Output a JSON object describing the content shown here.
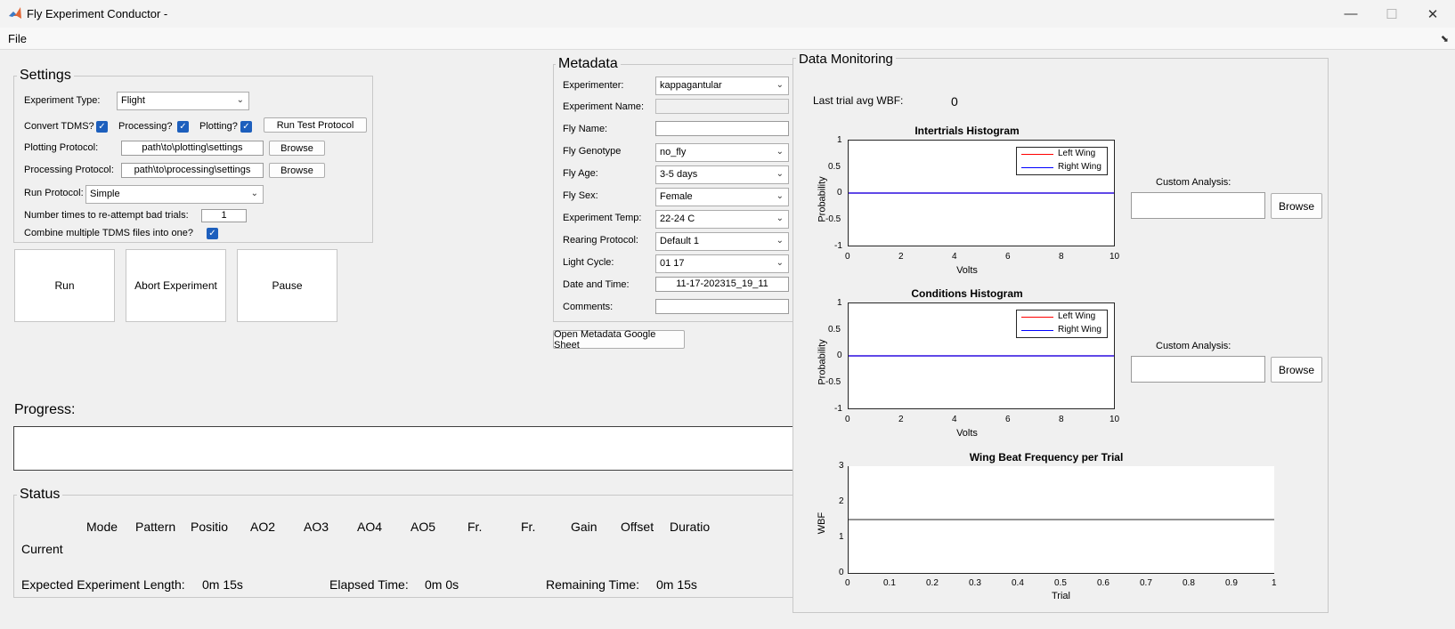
{
  "window": {
    "title": "Fly Experiment Conductor -",
    "minimize": "—",
    "maximize": "☐",
    "close": "✕"
  },
  "menu": {
    "file": "File"
  },
  "settings": {
    "title": "Settings",
    "experiment_type_label": "Experiment Type:",
    "experiment_type_value": "Flight",
    "convert_tdms_label": "Convert TDMS?",
    "processing_label": "Processing?",
    "plotting_label": "Plotting?",
    "run_test_protocol_label": "Run Test Protocol",
    "plotting_protocol_label": "Plotting Protocol:",
    "plotting_protocol_value": "path\\to\\plotting\\settings",
    "processing_protocol_label": "Processing Protocol:",
    "processing_protocol_value": "path\\to\\processing\\settings",
    "browse_label": "Browse",
    "run_protocol_label": "Run Protocol:",
    "run_protocol_value": "Simple",
    "reattempt_label": "Number times to re-attempt bad trials:",
    "reattempt_value": "1",
    "combine_label": "Combine multiple TDMS files into one?",
    "checkmark": "✓"
  },
  "actions": {
    "run": "Run",
    "abort": "Abort Experiment",
    "pause": "Pause"
  },
  "progress": {
    "label": "Progress:",
    "fraction": 0
  },
  "status": {
    "title": "Status",
    "columns": [
      "Mode",
      "Pattern",
      "Positio",
      "AO2",
      "AO3",
      "AO4",
      "AO5",
      "Fr.",
      "Fr.",
      "Gain",
      "Offset",
      "Duratio"
    ],
    "row_label": "Current",
    "expected_label": "Expected Experiment Length:",
    "expected_value": "0m 15s",
    "elapsed_label": "Elapsed Time:",
    "elapsed_value": "0m 0s",
    "remaining_label": "Remaining Time:",
    "remaining_value": "0m 15s"
  },
  "metadata": {
    "title": "Metadata",
    "experimenter_label": "Experimenter:",
    "experimenter_value": "kappagantular",
    "experiment_name_label": "Experiment Name:",
    "fly_name_label": "Fly Name:",
    "fly_genotype_label": "Fly Genotype",
    "fly_genotype_value": "no_fly",
    "fly_age_label": "Fly Age:",
    "fly_age_value": "3-5 days",
    "fly_sex_label": "Fly Sex:",
    "fly_sex_value": "Female",
    "experiment_temp_label": "Experiment Temp:",
    "experiment_temp_value": "22-24 C",
    "rearing_protocol_label": "Rearing Protocol:",
    "rearing_protocol_value": "Default 1",
    "light_cycle_label": "Light Cycle:",
    "light_cycle_value": "01 17",
    "date_time_label": "Date and Time:",
    "date_time_value": "11-17-202315_19_11",
    "comments_label": "Comments:",
    "open_sheet_label": "Open Metadata Google Sheet",
    "dropdown_arrow": "⌄"
  },
  "monitoring": {
    "title": "Data Monitoring",
    "last_wbf_label": "Last trial avg WBF:",
    "last_wbf_value": "0",
    "custom_analysis_label": "Custom Analysis:",
    "browse_label": "Browse"
  },
  "colors": {
    "left_wing": "#ff0000",
    "right_wing": "#0000ff",
    "wbf_line": "#262626",
    "checkbox": "#1d5fbd"
  },
  "chart_data": [
    {
      "type": "line",
      "title": "Intertrials Histogram",
      "xlabel": "Volts",
      "ylabel": "Probability",
      "xlim": [
        0,
        10
      ],
      "ylim": [
        -1,
        1
      ],
      "xticks": [
        "0",
        "2",
        "4",
        "6",
        "8",
        "10"
      ],
      "yticks": [
        "1",
        "0.5",
        "0",
        "-0.5",
        "-1"
      ],
      "legend_position": "top-right",
      "series": [
        {
          "name": "Left Wing",
          "x": [
            0,
            10
          ],
          "y": [
            0,
            0
          ]
        },
        {
          "name": "Right Wing",
          "x": [
            0,
            10
          ],
          "y": [
            0,
            0
          ]
        }
      ]
    },
    {
      "type": "line",
      "title": "Conditions Histogram",
      "xlabel": "Volts",
      "ylabel": "Probability",
      "xlim": [
        0,
        10
      ],
      "ylim": [
        -1,
        1
      ],
      "xticks": [
        "0",
        "2",
        "4",
        "6",
        "8",
        "10"
      ],
      "yticks": [
        "1",
        "0.5",
        "0",
        "-0.5",
        "-1"
      ],
      "legend_position": "top-right",
      "series": [
        {
          "name": "Left Wing",
          "x": [
            0,
            10
          ],
          "y": [
            0,
            0
          ]
        },
        {
          "name": "Right Wing",
          "x": [
            0,
            10
          ],
          "y": [
            0,
            0
          ]
        }
      ]
    },
    {
      "type": "line",
      "title": "Wing Beat Frequency per Trial",
      "xlabel": "Trial",
      "ylabel": "WBF",
      "xlim": [
        0,
        1
      ],
      "ylim": [
        0,
        3
      ],
      "xticks": [
        "0",
        "0.1",
        "0.2",
        "0.3",
        "0.4",
        "0.5",
        "0.6",
        "0.7",
        "0.8",
        "0.9",
        "1"
      ],
      "yticks": [
        "3",
        "2",
        "1",
        "0"
      ],
      "series": [
        {
          "x": [
            0,
            1
          ],
          "y": [
            1.5,
            1.5
          ]
        }
      ]
    }
  ]
}
